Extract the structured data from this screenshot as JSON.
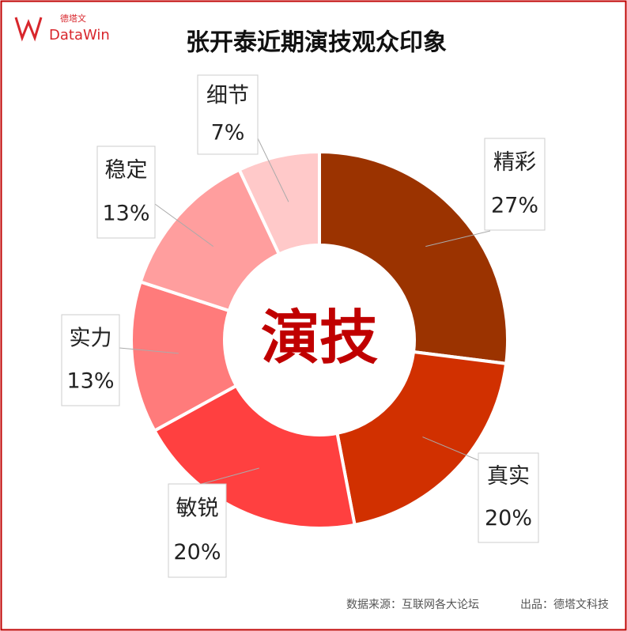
{
  "logo": {
    "cn": "德塔文",
    "en": "DataWin"
  },
  "source": "数据来源：互联网各大论坛",
  "producer": "出品：德塔文科技",
  "chart_data": {
    "type": "donut",
    "title": "张开泰近期演技观众印象",
    "center_label": "演技",
    "categories": [
      "精彩",
      "真实",
      "敏锐",
      "实力",
      "稳定",
      "细节"
    ],
    "values": [
      27,
      20,
      20,
      13,
      13,
      7
    ],
    "value_labels": [
      "27%",
      "20%",
      "20%",
      "13%",
      "13%",
      "7%"
    ],
    "colors": [
      "#9b3300",
      "#d13000",
      "#ff4040",
      "#ff7b7b",
      "#ff9e9e",
      "#ffc9c9"
    ]
  }
}
